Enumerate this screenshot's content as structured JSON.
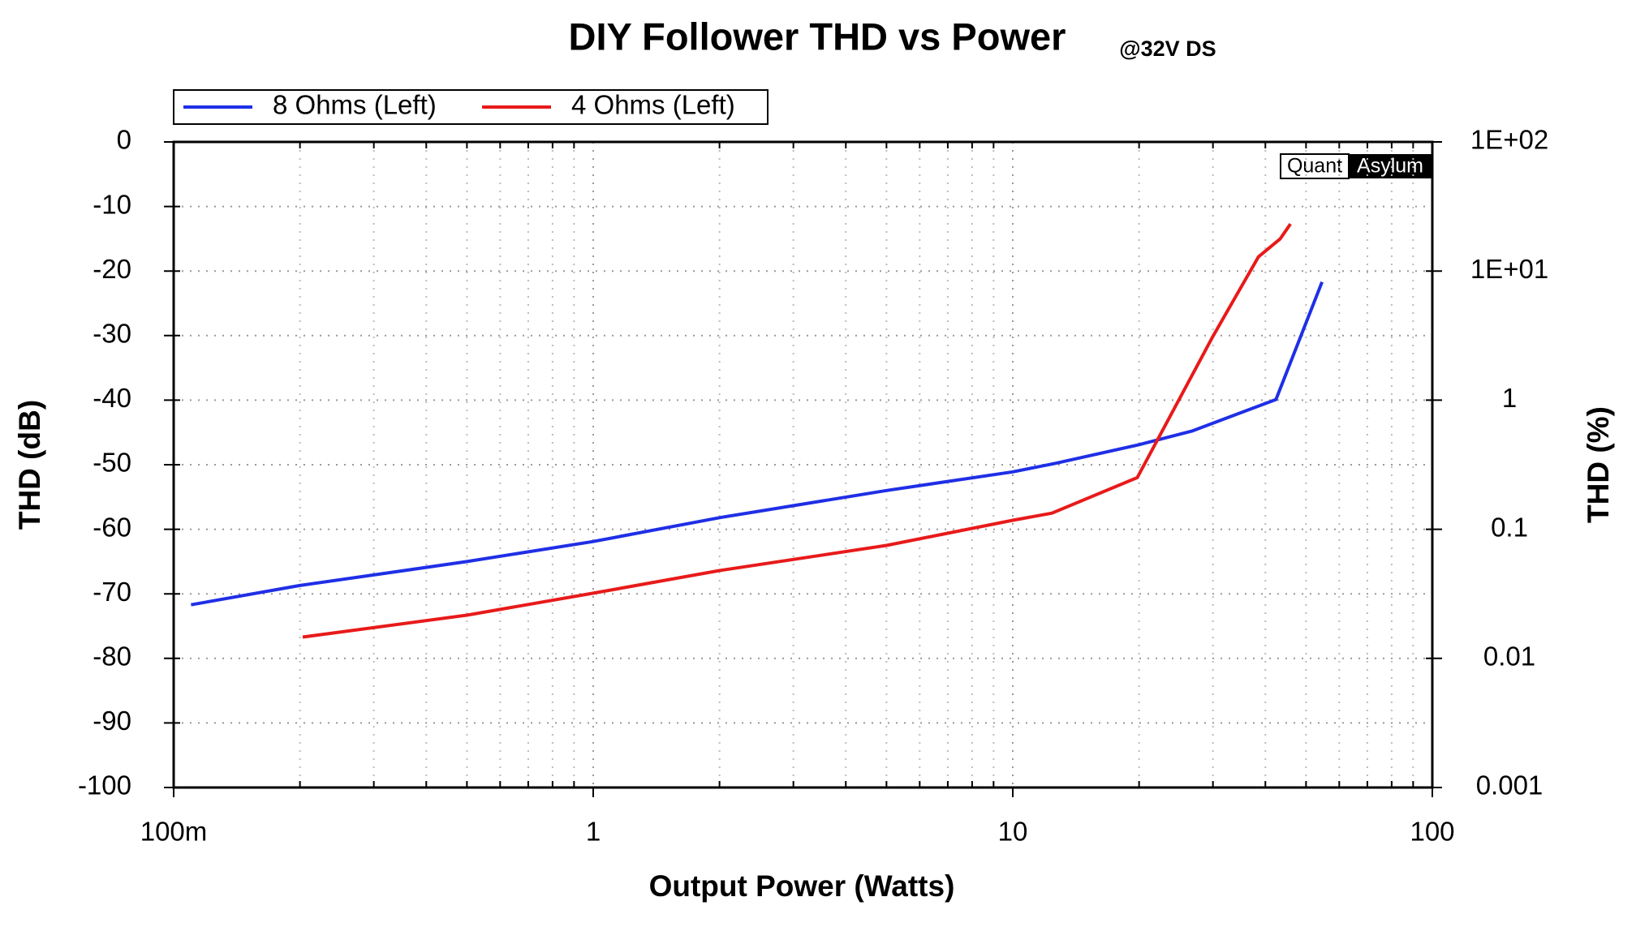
{
  "chart_data": {
    "type": "line",
    "title": "DIY Follower THD vs Power",
    "annotation": "@32V DS",
    "watermark": [
      "Quant",
      "Asylum"
    ],
    "x_label": "Output Power (Watts)",
    "y_label": "THD (dB)",
    "y2_label": "THD (%)",
    "x_log": true,
    "y2_log": true,
    "grid": true,
    "legend": "top-left",
    "xlim": [
      0.1,
      100
    ],
    "xticks": [
      {
        "value": 0.1,
        "label": "100m"
      },
      1,
      10,
      100
    ],
    "xminorticks": [
      0.2,
      0.3,
      0.4,
      0.5,
      0.6,
      0.7,
      0.8,
      0.9,
      2,
      3,
      4,
      5,
      6,
      7,
      8,
      9,
      20,
      30,
      40,
      50,
      60,
      70,
      80,
      90
    ],
    "ylim": [
      -100,
      0
    ],
    "yticks": [
      -100,
      -90,
      -80,
      -70,
      -60,
      -50,
      -40,
      -30,
      -20,
      -10,
      0
    ],
    "y2lim": [
      0.001,
      100
    ],
    "y2ticks": [
      {
        "value": 100,
        "label": "1E+02"
      },
      {
        "value": 10,
        "label": "1E+01"
      },
      1,
      0.1,
      0.01,
      0.001
    ],
    "series": [
      {
        "name": "8 Ohms (Left)",
        "color": "#1f2fe6",
        "x": [
          0.11,
          0.2,
          0.5,
          1,
          2,
          5,
          10,
          12.6,
          20,
          26.7,
          42.4,
          54.6
        ],
        "values": [
          -71.7,
          -68.7,
          -65,
          -61.9,
          -58.2,
          -54,
          -51.1,
          -49.8,
          -46.9,
          -44.8,
          -39.9,
          -21.7
        ]
      },
      {
        "name": "4 Ohms (Left)",
        "color": "#e81a1a",
        "x": [
          0.203,
          0.5,
          1,
          2,
          5,
          10,
          12.4,
          19.8,
          30,
          38.5,
          43.4,
          45.9
        ],
        "values": [
          -76.7,
          -73.3,
          -69.9,
          -66.4,
          -62.5,
          -58.6,
          -57.5,
          -52,
          -30.1,
          -17.8,
          -15,
          -12.7
        ]
      }
    ]
  }
}
